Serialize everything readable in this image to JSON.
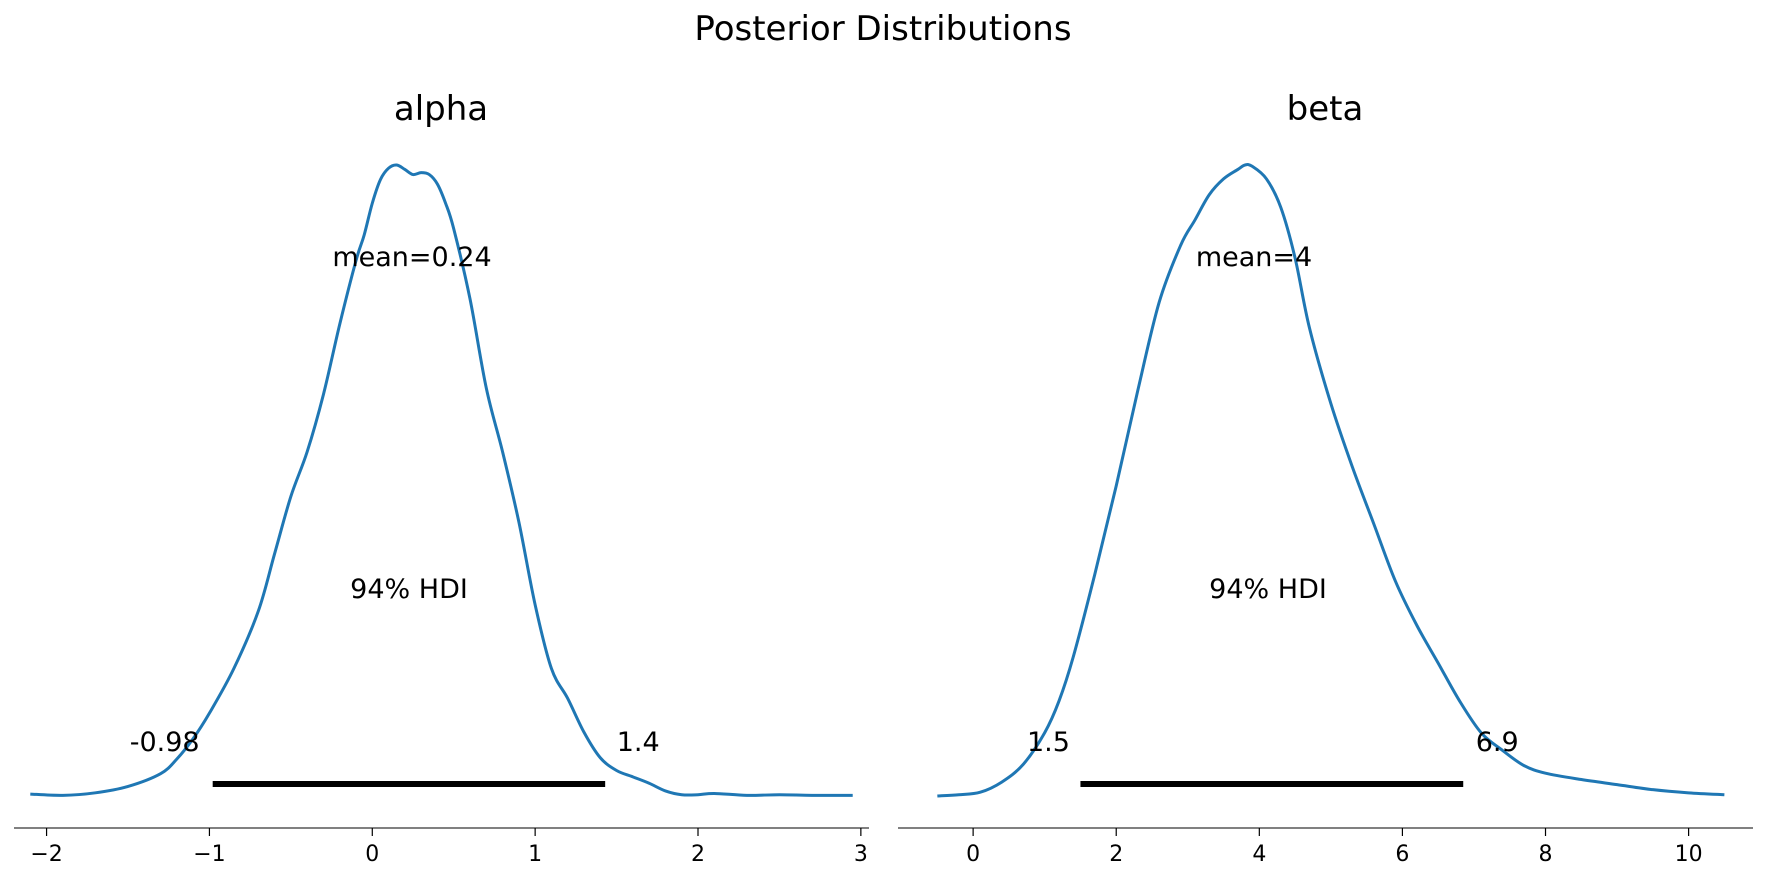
{
  "title": "Posterior Distributions",
  "line_color": "#1f77b4",
  "hdi_color": "#000000",
  "chart_data": [
    {
      "type": "line",
      "title": "alpha",
      "xlabel": "",
      "ylabel": "",
      "xlim": [
        -2.2,
        3.05
      ],
      "xticks": [
        -2,
        -1,
        0,
        1,
        2,
        3
      ],
      "xtick_labels": [
        "−2",
        "−1",
        "0",
        "1",
        "2",
        "3"
      ],
      "grid": false,
      "mean_label": "mean=0.24",
      "hdi_label": "94% HDI",
      "hdi": [
        -0.98,
        1.43
      ],
      "hdi_low_label": "-0.98",
      "hdi_high_label": "1.4",
      "density": {
        "x": [
          -2.1,
          -1.9,
          -1.7,
          -1.5,
          -1.3,
          -1.2,
          -1.1,
          -1.0,
          -0.85,
          -0.7,
          -0.6,
          -0.5,
          -0.4,
          -0.3,
          -0.2,
          -0.1,
          -0.05,
          0.0,
          0.05,
          0.1,
          0.15,
          0.2,
          0.25,
          0.3,
          0.35,
          0.4,
          0.45,
          0.5,
          0.6,
          0.7,
          0.8,
          0.9,
          1.0,
          1.1,
          1.2,
          1.3,
          1.4,
          1.5,
          1.6,
          1.7,
          1.8,
          1.9,
          2.0,
          2.1,
          2.3,
          2.5,
          2.7,
          2.95
        ],
        "y": [
          0.003,
          0.001,
          0.005,
          0.015,
          0.035,
          0.058,
          0.09,
          0.13,
          0.2,
          0.29,
          0.38,
          0.47,
          0.54,
          0.63,
          0.74,
          0.84,
          0.88,
          0.93,
          0.967,
          0.985,
          0.99,
          0.983,
          0.975,
          0.978,
          0.975,
          0.96,
          0.93,
          0.89,
          0.78,
          0.64,
          0.54,
          0.43,
          0.3,
          0.2,
          0.153,
          0.1,
          0.06,
          0.04,
          0.03,
          0.02,
          0.008,
          0.002,
          0.002,
          0.004,
          0.001,
          0.002,
          0.001,
          0.001
        ]
      }
    },
    {
      "type": "line",
      "title": "beta",
      "xlabel": "",
      "ylabel": "",
      "xlim": [
        -1.05,
        10.9
      ],
      "xticks": [
        0,
        2,
        4,
        6,
        8,
        10
      ],
      "xtick_labels": [
        "0",
        "2",
        "4",
        "6",
        "8",
        "10"
      ],
      "grid": false,
      "mean_label": "mean=4",
      "hdi_label": "94% HDI",
      "hdi": [
        1.5,
        6.85
      ],
      "hdi_low_label": "1.5",
      "hdi_high_label": "6.9",
      "density": {
        "x": [
          -0.5,
          -0.2,
          0.1,
          0.4,
          0.7,
          1.0,
          1.2,
          1.4,
          1.7,
          2.0,
          2.3,
          2.6,
          2.9,
          3.1,
          3.3,
          3.5,
          3.7,
          3.8,
          3.9,
          4.1,
          4.3,
          4.5,
          4.7,
          5.0,
          5.3,
          5.6,
          5.9,
          6.2,
          6.5,
          6.8,
          7.1,
          7.4,
          7.7,
          8.0,
          8.5,
          9.0,
          9.5,
          10.0,
          10.5
        ],
        "y": [
          0.0,
          0.002,
          0.006,
          0.022,
          0.05,
          0.1,
          0.15,
          0.22,
          0.35,
          0.49,
          0.64,
          0.78,
          0.87,
          0.91,
          0.95,
          0.975,
          0.99,
          0.997,
          0.995,
          0.975,
          0.93,
          0.85,
          0.74,
          0.62,
          0.52,
          0.43,
          0.34,
          0.27,
          0.21,
          0.15,
          0.1,
          0.072,
          0.048,
          0.036,
          0.026,
          0.018,
          0.01,
          0.005,
          0.002
        ]
      }
    }
  ]
}
